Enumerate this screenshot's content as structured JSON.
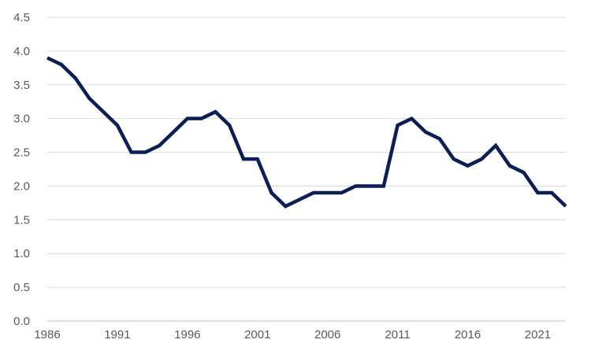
{
  "chart_data": {
    "type": "line",
    "title": "",
    "xlabel": "",
    "ylabel": "",
    "x": [
      1986,
      1987,
      1988,
      1989,
      1990,
      1991,
      1992,
      1993,
      1994,
      1995,
      1996,
      1997,
      1998,
      1999,
      2000,
      2001,
      2002,
      2003,
      2004,
      2005,
      2006,
      2007,
      2008,
      2009,
      2010,
      2011,
      2012,
      2013,
      2014,
      2015,
      2016,
      2017,
      2018,
      2019,
      2020,
      2021,
      2022,
      2023
    ],
    "series": [
      {
        "values": [
          3.9,
          3.8,
          3.6,
          3.3,
          3.1,
          2.9,
          2.5,
          2.5,
          2.6,
          2.8,
          3.0,
          3.0,
          3.1,
          2.9,
          2.4,
          2.4,
          1.9,
          1.7,
          1.8,
          1.9,
          1.9,
          1.9,
          2.0,
          2.0,
          2.0,
          2.9,
          3.0,
          2.8,
          2.7,
          2.4,
          2.3,
          2.4,
          2.6,
          2.3,
          2.2,
          1.9,
          1.9,
          1.7
        ],
        "color": "#0b1f55"
      }
    ],
    "xlim": [
      1986,
      2023
    ],
    "ylim": [
      0,
      4.5
    ],
    "x_ticks": [
      "1986",
      "1991",
      "1996",
      "2001",
      "2006",
      "2011",
      "2016",
      "2021"
    ],
    "y_ticks": [
      "0.0",
      "0.5",
      "1.0",
      "1.5",
      "2.0",
      "2.5",
      "3.0",
      "3.5",
      "4.0",
      "4.5"
    ],
    "grid": "horizontal",
    "legend": "none",
    "colors": {
      "line": "#0b1f55",
      "grid": "#d9d9d9",
      "axis": "#bfbfbf",
      "tick_text": "#595959"
    }
  }
}
